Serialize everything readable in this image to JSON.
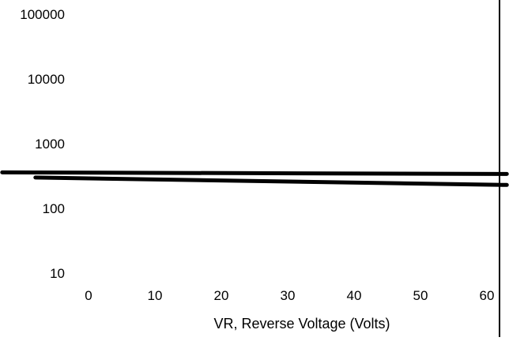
{
  "chart_data": {
    "type": "line",
    "title": "",
    "xlabel": "VR, Reverse Voltage (Volts)",
    "ylabel": "",
    "yscale": "log",
    "grid": false,
    "legend": "none",
    "xlim": [
      0,
      60
    ],
    "ylim": [
      10,
      100000
    ],
    "x_ticks": [
      0,
      10,
      20,
      30,
      40,
      50,
      60
    ],
    "x_tick_labels": [
      "0",
      "10",
      "20",
      "30",
      "40",
      "50",
      "60"
    ],
    "y_ticks": [
      10,
      100,
      1000,
      10000,
      100000
    ],
    "y_tick_labels": [
      "10",
      "100",
      "1000",
      "10000",
      "100000"
    ],
    "series": [
      {
        "x": [
          -13,
          63
        ],
        "y": [
          360,
          340
        ],
        "color": "#000000"
      },
      {
        "x": [
          -8,
          63
        ],
        "y": [
          300,
          230
        ],
        "color": "#000000"
      }
    ]
  },
  "colors": {
    "background": "#ffffff",
    "ink": "#000000"
  }
}
